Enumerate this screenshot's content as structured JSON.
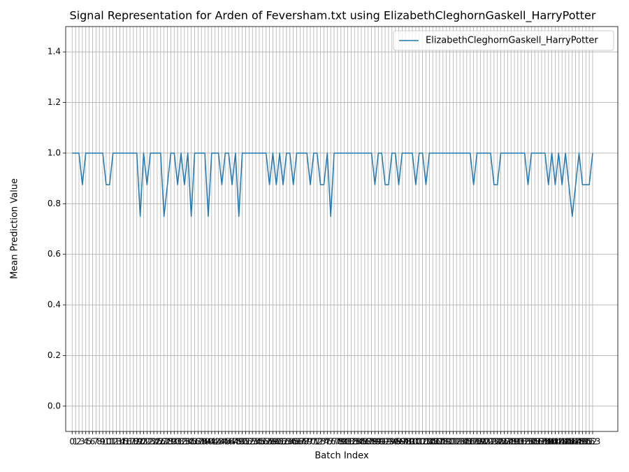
{
  "chart_data": {
    "type": "line",
    "title": "Signal Representation for Arden of Feversham.txt using ElizabethCleghornGaskell_HarryPotter",
    "xlabel": "Batch Index",
    "ylabel": "Mean Prediction Value",
    "x": [
      0,
      1,
      2,
      3,
      4,
      5,
      6,
      7,
      8,
      9,
      10,
      11,
      12,
      13,
      14,
      15,
      16,
      17,
      18,
      19,
      20,
      21,
      22,
      23,
      24,
      25,
      26,
      27,
      28,
      29,
      30,
      31,
      32,
      33,
      34,
      35,
      36,
      37,
      38,
      39,
      40,
      41,
      42,
      43,
      44,
      45,
      46,
      47,
      48,
      49,
      50,
      51,
      52,
      53,
      54,
      55,
      56,
      57,
      58,
      59,
      60,
      61,
      62,
      63,
      64,
      65,
      66,
      67,
      68,
      69,
      70,
      71,
      72,
      73,
      74,
      75,
      76,
      77,
      78,
      79,
      80,
      81,
      82,
      83,
      84,
      85,
      86,
      87,
      88,
      89,
      90,
      91,
      92,
      93,
      94,
      95,
      96,
      97,
      98,
      99,
      100,
      101,
      102,
      103,
      104,
      105,
      106,
      107,
      108,
      109,
      110,
      111,
      112,
      113,
      114,
      115,
      116,
      117,
      118,
      119,
      120,
      121,
      122,
      123,
      124,
      125,
      126,
      127,
      128,
      129,
      130,
      131,
      132,
      133,
      134,
      135,
      136,
      137,
      138,
      139,
      140,
      141,
      142,
      143,
      144,
      145,
      146,
      147,
      148,
      149,
      150,
      151,
      152,
      153
    ],
    "series": [
      {
        "name": "ElizabethCleghornGaskell_HarryPotter",
        "color": "#1f77b4",
        "values": [
          1,
          1,
          1,
          0.875,
          1,
          1,
          1,
          1,
          1,
          1,
          0.875,
          0.875,
          1,
          1,
          1,
          1,
          1,
          1,
          1,
          1,
          0.75,
          1,
          0.875,
          1,
          1,
          1,
          1,
          0.75,
          0.875,
          1,
          1,
          0.875,
          1,
          0.875,
          1,
          0.75,
          1,
          1,
          1,
          1,
          0.75,
          1,
          1,
          1,
          0.875,
          1,
          1,
          0.875,
          1,
          0.75,
          1,
          1,
          1,
          1,
          1,
          1,
          1,
          1,
          0.875,
          1,
          0.875,
          1,
          0.875,
          1,
          1,
          0.875,
          1,
          1,
          1,
          1,
          0.875,
          1,
          1,
          0.875,
          0.875,
          1,
          0.75,
          1,
          1,
          1,
          1,
          1,
          1,
          1,
          1,
          1,
          1,
          1,
          1,
          0.875,
          1,
          1,
          0.875,
          0.875,
          1,
          1,
          0.875,
          1,
          1,
          1,
          1,
          0.875,
          1,
          1,
          0.875,
          1,
          1,
          1,
          1,
          1,
          1,
          1,
          1,
          1,
          1,
          1,
          1,
          1,
          0.875,
          1,
          1,
          1,
          1,
          1,
          0.875,
          0.875,
          1,
          1,
          1,
          1,
          1,
          1,
          1,
          1,
          0.875,
          1,
          1,
          1,
          1,
          1,
          0.875,
          1,
          0.875,
          1,
          0.875,
          1,
          0.875,
          0.75,
          0.875,
          1,
          0.875,
          0.875,
          0.875,
          1
        ]
      }
    ],
    "xlim": [
      -1.9,
      160.4
    ],
    "xticks": [
      0,
      1,
      2,
      3,
      4,
      5,
      6,
      7,
      8,
      9,
      10,
      11,
      12,
      13,
      14,
      15,
      16,
      17,
      18,
      19,
      20,
      21,
      22,
      23,
      24,
      25,
      26,
      27,
      28,
      29,
      30,
      31,
      32,
      33,
      34,
      35,
      36,
      37,
      38,
      39,
      40,
      41,
      42,
      43,
      44,
      45,
      46,
      47,
      48,
      49,
      50,
      51,
      52,
      53,
      54,
      55,
      56,
      57,
      58,
      59,
      60,
      61,
      62,
      63,
      64,
      65,
      66,
      67,
      68,
      69,
      70,
      71,
      72,
      73,
      74,
      75,
      76,
      77,
      78,
      79,
      80,
      81,
      82,
      83,
      84,
      85,
      86,
      87,
      88,
      89,
      90,
      91,
      92,
      93,
      94,
      95,
      96,
      97,
      98,
      99,
      100,
      101,
      102,
      103,
      104,
      105,
      106,
      107,
      108,
      109,
      110,
      111,
      112,
      113,
      114,
      115,
      116,
      117,
      118,
      119,
      120,
      121,
      122,
      123,
      124,
      125,
      126,
      127,
      128,
      129,
      130,
      131,
      132,
      133,
      134,
      135,
      136,
      137,
      138,
      139,
      140,
      141,
      142,
      143,
      144,
      145,
      146,
      147,
      148,
      149,
      150,
      151,
      152,
      153
    ],
    "ylim": [
      -0.1,
      1.5
    ],
    "yticks": [
      {
        "value": 0,
        "label": "0.0"
      },
      0.2,
      0.4,
      0.6,
      0.8,
      {
        "value": 1,
        "label": "1.0"
      },
      1.2,
      1.4
    ],
    "grid": true,
    "legend": "upper right"
  }
}
